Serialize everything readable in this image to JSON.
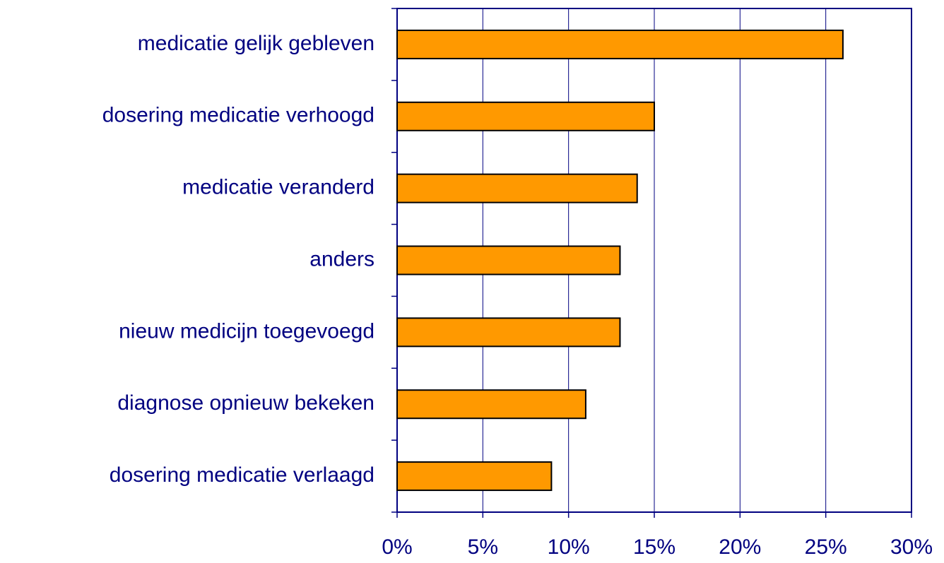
{
  "chart_data": {
    "type": "bar",
    "orientation": "horizontal",
    "categories": [
      "medicatie gelijk gebleven",
      "dosering medicatie verhoogd",
      "medicatie veranderd",
      "anders",
      "nieuw medicijn toegevoegd",
      "diagnose opnieuw bekeken",
      "dosering medicatie verlaagd"
    ],
    "values": [
      26,
      15,
      14,
      13,
      13,
      11,
      9
    ],
    "color": "#ff9900",
    "xlim": [
      0,
      30
    ],
    "xticks": [
      {
        "value": 0,
        "label": "0%"
      },
      {
        "value": 5,
        "label": "5%"
      },
      {
        "value": 10,
        "label": "10%"
      },
      {
        "value": 15,
        "label": "15%"
      },
      {
        "value": 20,
        "label": "20%"
      },
      {
        "value": 25,
        "label": "25%"
      },
      {
        "value": 30,
        "label": "30%"
      }
    ],
    "grid": true
  }
}
